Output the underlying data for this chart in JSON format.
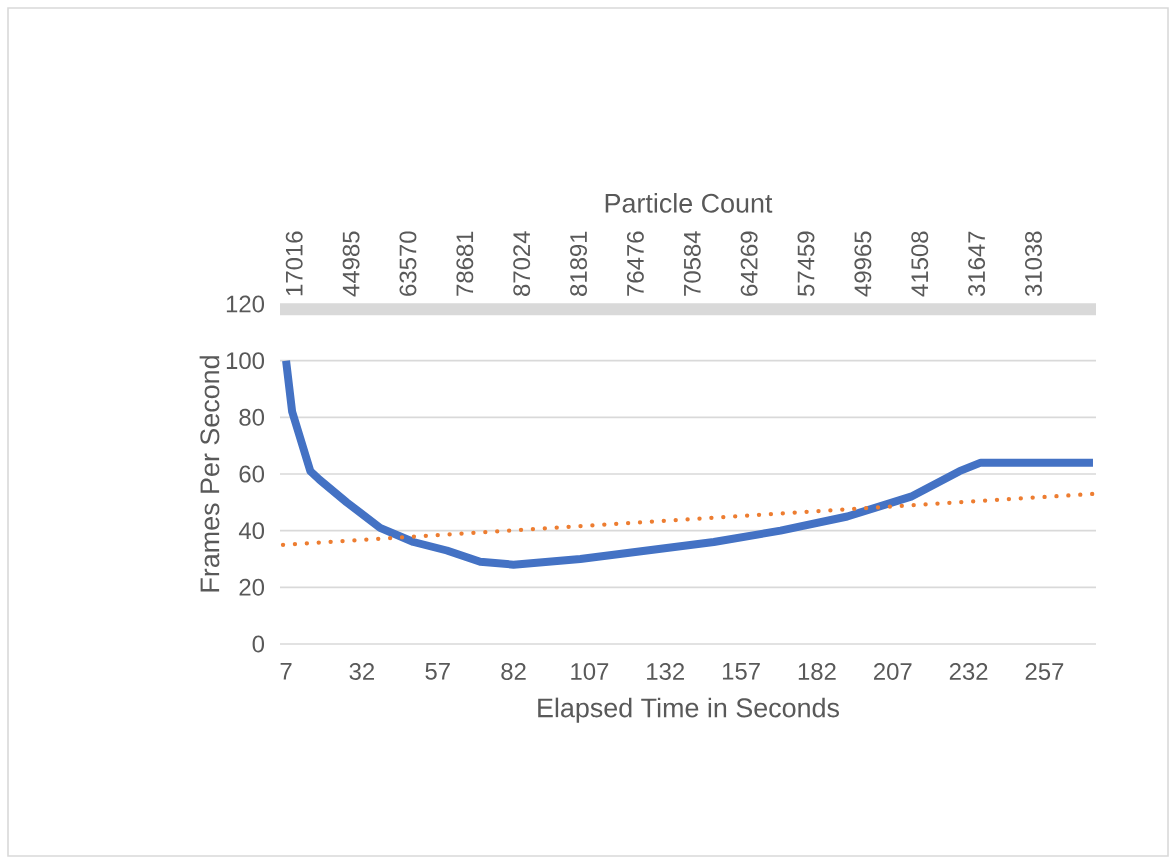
{
  "chart_data": {
    "type": "line",
    "xlabel": "Elapsed Time in Seconds",
    "ylabel": "Frames Per Second",
    "x2label": "Particle Count",
    "xlim": [
      5,
      274
    ],
    "xticks": [
      7,
      32,
      57,
      82,
      107,
      132,
      157,
      182,
      207,
      232,
      257
    ],
    "ylim": [
      0,
      120
    ],
    "yticks": [
      0,
      20,
      40,
      60,
      80,
      100,
      120
    ],
    "annotations": [
      "17016",
      "44985",
      "63570",
      "78681",
      "87024",
      "81891",
      "76476",
      "70584",
      "64269",
      "57459",
      "49965",
      "41508",
      "31647",
      "31038"
    ],
    "grid": "y",
    "bands": [
      {
        "axis": "y",
        "from": 116,
        "to": 120,
        "color": "#d9d9d9"
      }
    ],
    "series": [
      {
        "color": "#4472c4",
        "line_style": "solid",
        "x": [
          7,
          9,
          15,
          18,
          27,
          38,
          49,
          60,
          71,
          82,
          104,
          126,
          148,
          170,
          192,
          213,
          229,
          236,
          257,
          273
        ],
        "values": [
          100,
          82,
          61,
          58,
          50,
          41,
          36,
          33,
          29,
          28,
          30,
          33,
          36,
          40,
          45,
          52,
          61,
          64,
          64,
          64
        ]
      },
      {
        "color": "#ed7d31",
        "line_style": "dotted",
        "x": [
          6,
          273
        ],
        "values": [
          35,
          53
        ]
      }
    ]
  }
}
